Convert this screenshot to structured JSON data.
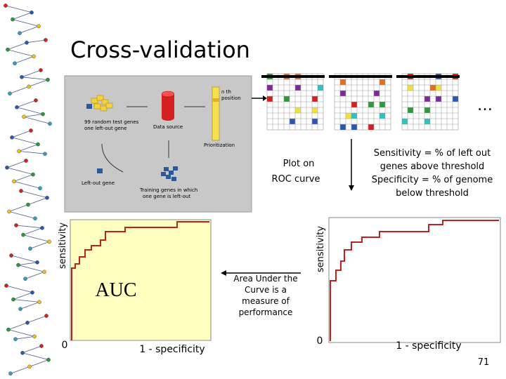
{
  "title": "Cross-validation",
  "ellipsis": "…",
  "diagram": {
    "test_genes": [
      "99 random test genes",
      "one left-out gene"
    ],
    "data_source": "Data source",
    "position": [
      "n th",
      "position"
    ],
    "prioritization": "Prioritization",
    "left_out": "Left-out gene",
    "training": [
      "Training genes in which",
      "one gene is left-out"
    ]
  },
  "plot_note": [
    "Plot on",
    "ROC curve"
  ],
  "definition": [
    "Sensitivity = % of left out",
    "genes above threshold",
    "Specificity = % of genome",
    "below threshold"
  ],
  "left_plot": {
    "y_label": "sensitivity",
    "auc": "AUC",
    "origin": "0",
    "x_label": "1 - specificity"
  },
  "auc_note": [
    "Area Under the",
    "Curve is a",
    "measure of",
    "performance"
  ],
  "right_plot": {
    "y_label": "sensitivity",
    "origin": "0",
    "x_label": "1 - specificity"
  },
  "page_number": "71"
}
